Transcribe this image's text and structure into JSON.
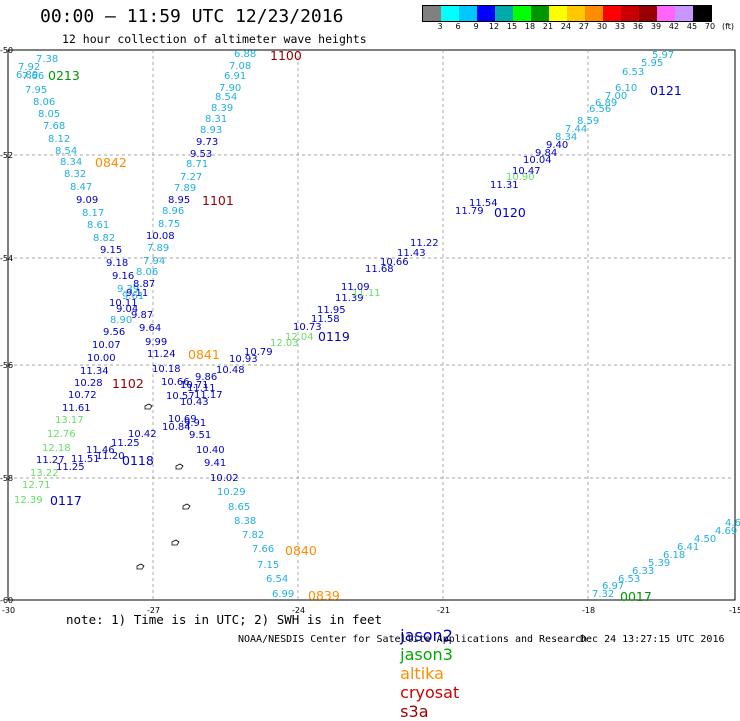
{
  "header": {
    "title": "00:00 — 11:59 UTC 12/23/2016",
    "subtitle": "12 hour collection of altimeter wave heights"
  },
  "colorbar": {
    "colors": [
      "#808080",
      "#00ffff",
      "#00c8ff",
      "#0000ff",
      "#00aaaa",
      "#00ff00",
      "#009600",
      "#ffff00",
      "#ffc800",
      "#ff8c00",
      "#ff0000",
      "#c80000",
      "#960000",
      "#ff64ff",
      "#c896ff",
      "#000000"
    ],
    "labels": [
      "3",
      "6",
      "9",
      "12",
      "15",
      "18",
      "21",
      "24",
      "27",
      "30",
      "33",
      "36",
      "39",
      "42",
      "45",
      "70",
      "(ft)"
    ]
  },
  "axes": {
    "lat_labels": [
      "-50",
      "-52",
      "-54",
      "-56",
      "-58",
      "-60"
    ],
    "lon_labels": [
      "-30",
      "-27",
      "-24",
      "-21",
      "-18",
      "-15"
    ]
  },
  "palette": {
    "jason2": "#0000cc",
    "jason3": "#00aa00",
    "altika": "#ff8c00",
    "cryosat": "#cc0000",
    "s3a": "#990000",
    "light_blue": "#20b0e0",
    "light_green": "#66dd66"
  },
  "tracks": [
    {
      "time": "0213",
      "color": "#009600",
      "values": [
        "7.38",
        "7.92",
        "7.66",
        "6.89"
      ]
    },
    {
      "time": "0842",
      "color": "#ff8c00",
      "values": [
        "7.95",
        "8.06",
        "8.05",
        "7.68",
        "8.12",
        "8.54",
        "8.34",
        "8.32",
        "8.47",
        "9.09",
        "8.17",
        "8.61",
        "8.82",
        "9.15",
        "9.18",
        "9.16",
        "9.39",
        "9.61",
        "10.11",
        "9.04",
        "8.90",
        "9.56",
        "10.07",
        "10.00",
        "11.34",
        "10.28",
        "10.72",
        "11.61",
        "13.17",
        "12.76",
        "12.18",
        "11.27",
        "13.22",
        "12.71",
        "12.39"
      ]
    },
    {
      "time": "1100",
      "color": "#960000",
      "values": [
        "6.88",
        "7.08",
        "6.91",
        "7.90",
        "8.54",
        "8.39",
        "8.31",
        "8.93",
        "9.73",
        "9.53",
        "8.71",
        "7.27",
        "7.89",
        "8.95",
        "8.96",
        "8.75",
        "10.08",
        "7.89",
        "7.94",
        "8.06",
        "8.87",
        "9.11",
        "9.87",
        "9.64",
        "9.99",
        "11.24",
        "10.18",
        "10.66",
        "10.57",
        "10.43",
        "10.69",
        "10.84",
        "10.42"
      ]
    },
    {
      "time": "1101",
      "color": "#960000",
      "values": []
    },
    {
      "time": "1102",
      "color": "#960000",
      "values": []
    },
    {
      "time": "0841",
      "color": "#ff8c00",
      "values": [
        "11.17",
        "11.11",
        "10.71",
        "9.86",
        "10.48",
        "10.93",
        "10.79",
        "9.91",
        "9.51",
        "10.40",
        "9.41",
        "10.02",
        "10.29",
        "8.65",
        "8.38",
        "7.82",
        "7.66",
        "7.15",
        "6.54",
        "6.99"
      ]
    },
    {
      "time": "0840",
      "color": "#ff8c00",
      "values": []
    },
    {
      "time": "0839",
      "color": "#ff8c00",
      "values": []
    },
    {
      "time": "0118",
      "color": "#0000cc",
      "values": [
        "11.25",
        "11.46",
        "11.20",
        "11.51",
        "11.25"
      ]
    },
    {
      "time": "0117",
      "color": "#0000cc",
      "values": []
    },
    {
      "time": "0119",
      "color": "#0000cc",
      "values": [
        "12.03",
        "12.04",
        "10.73",
        "11.58",
        "11.95",
        "11.39",
        "11.11",
        "11.09",
        "11.68",
        "10.66",
        "11.43",
        "11.22"
      ]
    },
    {
      "time": "0120",
      "color": "#0000cc",
      "values": [
        "11.79",
        "11.54",
        "11.31",
        "10.90",
        "10.47",
        "10.04",
        "9.84",
        "9.40",
        "8.34",
        "7.44",
        "8.59",
        "6.56",
        "6.89",
        "7.00",
        "6.10",
        "6.53",
        "5.95",
        "5.97"
      ]
    },
    {
      "time": "0121",
      "color": "#0000cc",
      "values": []
    },
    {
      "time": "0017",
      "color": "#009600",
      "values": [
        "7.32",
        "6.97",
        "6.53",
        "6.33",
        "5.39",
        "6.18",
        "6.41",
        "4.50",
        "4.69",
        "4.6"
      ]
    }
  ],
  "note": "note: 1) Time is in UTC; 2) SWH is in feet",
  "legend": [
    "jason2",
    "jason3",
    "altika",
    "cryosat",
    "s3a"
  ],
  "footer": "NOAA/NESDIS Center for Satellite Applications and Research",
  "timestamp": "Dec 24 13:27:15 UTC 2016"
}
